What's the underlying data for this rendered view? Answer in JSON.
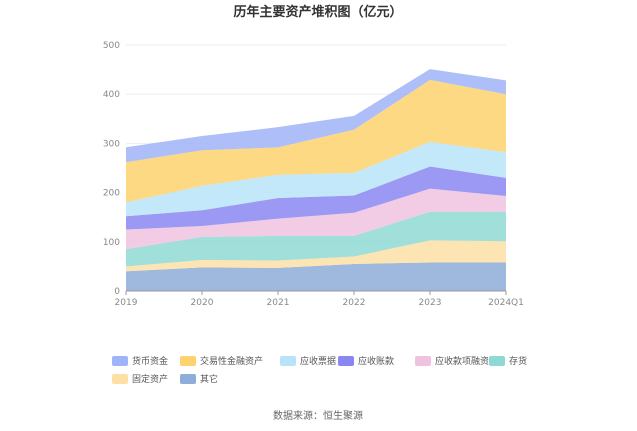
{
  "chart_data": {
    "type": "area",
    "stacked": true,
    "title": "历年主要资产堆积图（亿元）",
    "categories": [
      "2019",
      "2020",
      "2021",
      "2022",
      "2023",
      "2024Q1"
    ],
    "y_ticks": [
      "0",
      "100",
      "200",
      "300",
      "400",
      "500"
    ],
    "ylim": [
      0,
      500
    ],
    "series": [
      {
        "name": "其它",
        "color": "#8eadd8",
        "values": [
          40,
          48,
          47,
          55,
          58,
          58
        ]
      },
      {
        "name": "固定资产",
        "color": "#fde0a6",
        "values": [
          10,
          15,
          15,
          15,
          45,
          43
        ]
      },
      {
        "name": "存货",
        "color": "#8fd9d4",
        "values": [
          35,
          47,
          50,
          42,
          58,
          60
        ]
      },
      {
        "name": "应收款项融资",
        "color": "#efc3df",
        "values": [
          40,
          22,
          35,
          47,
          47,
          32
        ]
      },
      {
        "name": "应收账款",
        "color": "#8a87f2",
        "values": [
          27,
          32,
          42,
          35,
          45,
          37
        ]
      },
      {
        "name": "应收票据",
        "color": "#b8e4f9",
        "values": [
          28,
          50,
          47,
          46,
          50,
          52
        ]
      },
      {
        "name": "交易性金融资产",
        "color": "#fdd26f",
        "values": [
          82,
          72,
          56,
          88,
          126,
          118
        ]
      },
      {
        "name": "货币资金",
        "color": "#9fb3f7",
        "values": [
          30,
          29,
          41,
          28,
          22,
          28
        ]
      }
    ],
    "legend_position": "bottom",
    "source": "数据来源：恒生聚源"
  }
}
